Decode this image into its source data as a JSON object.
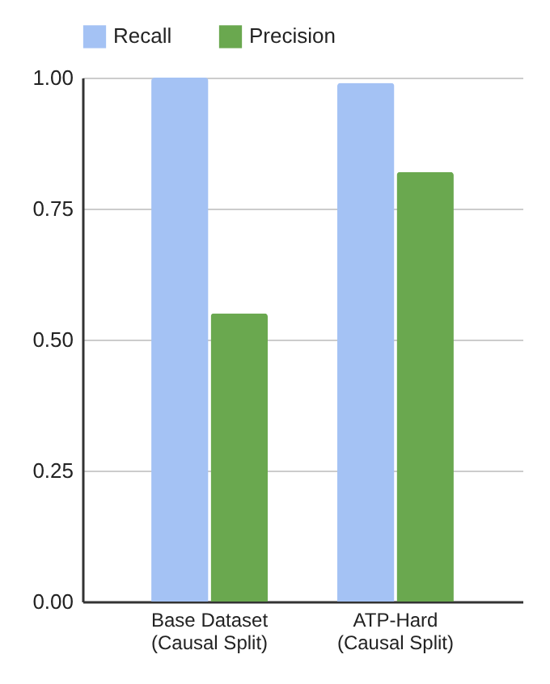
{
  "chart_data": {
    "type": "bar",
    "categories": [
      "Base Dataset\n(Causal Split)",
      "ATP-Hard\n(Causal Split)"
    ],
    "series": [
      {
        "name": "Recall",
        "color": "#a4c2f4",
        "values": [
          1.0,
          0.99
        ]
      },
      {
        "name": "Precision",
        "color": "#6aa84f",
        "values": [
          0.55,
          0.82
        ]
      }
    ],
    "ylim": [
      0,
      1
    ],
    "yticks": [
      {
        "value": 0,
        "label": "0.00"
      },
      {
        "value": 0.25,
        "label": "0.25"
      },
      {
        "value": 0.5,
        "label": "0.50"
      },
      {
        "value": 0.75,
        "label": "0.75"
      },
      {
        "value": 1,
        "label": "1.00"
      }
    ],
    "grid": "y",
    "legend": "top"
  }
}
